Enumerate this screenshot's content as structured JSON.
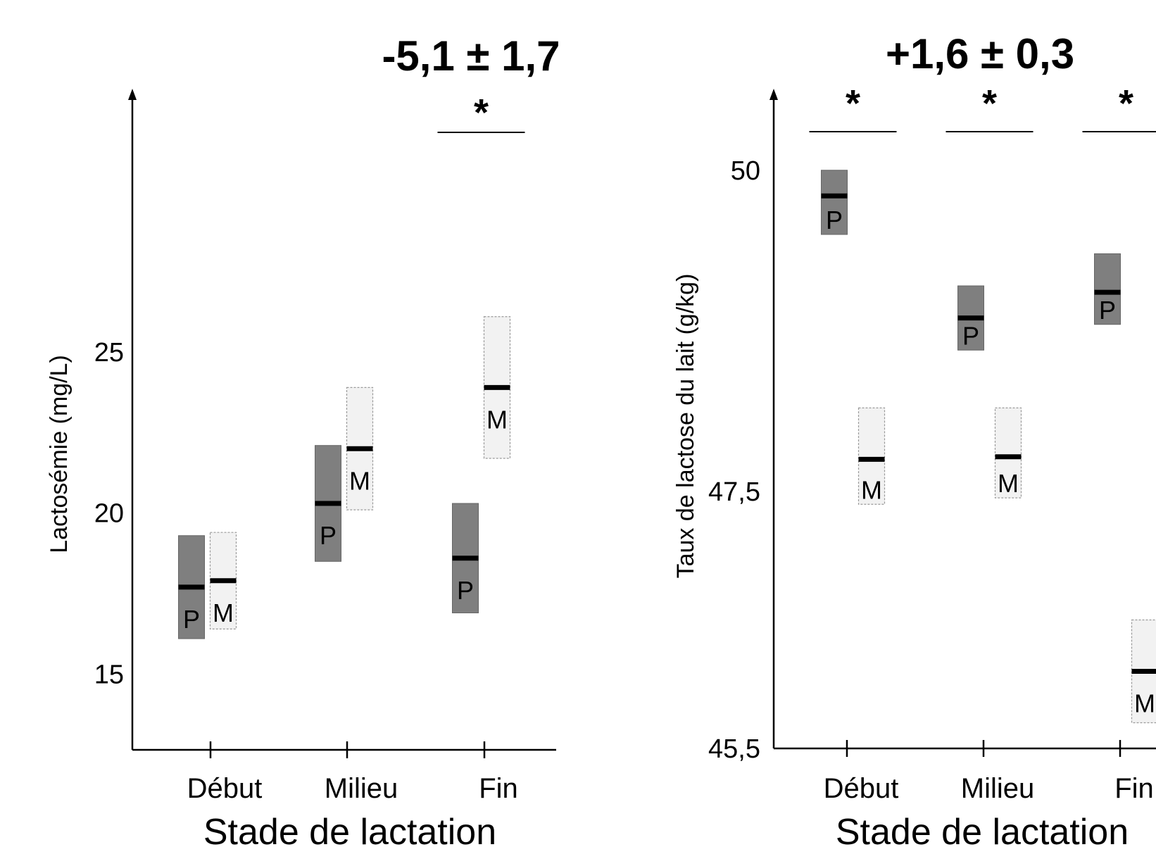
{
  "chart_data": [
    {
      "type": "bar",
      "chart_style": "floating range boxes with mean bar",
      "ylabel": "Lactosémie (mg/L)",
      "xlabel": "Stade de lactation",
      "headline": "-5,1 ± 1,7",
      "ylim": [
        13.5,
        28.5
      ],
      "yticks": [
        {
          "value": 15,
          "label": "15"
        },
        {
          "value": 20,
          "label": "20"
        },
        {
          "value": 25,
          "label": "25"
        }
      ],
      "categories": [
        "Début",
        "Milieu",
        "Fin"
      ],
      "series": [
        {
          "name": "P",
          "color": "#7f7f7f",
          "low": [
            16.1,
            18.5,
            16.9
          ],
          "mean": [
            17.7,
            20.3,
            18.6
          ],
          "high": [
            19.3,
            22.1,
            20.3
          ]
        },
        {
          "name": "M",
          "color": "#f2f2f2",
          "low": [
            16.4,
            20.1,
            21.7
          ],
          "mean": [
            17.9,
            22.0,
            23.9
          ],
          "high": [
            19.4,
            23.9,
            26.1
          ]
        }
      ],
      "significance": [
        {
          "category": "Fin",
          "label": "*"
        }
      ],
      "grid": false,
      "legend": "none"
    },
    {
      "type": "bar",
      "chart_style": "floating range boxes with mean bar",
      "ylabel": "Taux de lactose du lait (g/kg)",
      "xlabel": "Stade de lactation",
      "headline": "+1,6 ± 0,3",
      "ylim": [
        45.5,
        50.3
      ],
      "yticks": [
        {
          "value": 45.5,
          "label": "45,5"
        },
        {
          "value": 47.5,
          "label": "47,5"
        },
        {
          "value": 50,
          "label": "50"
        }
      ],
      "categories": [
        "Début",
        "Milieu",
        "Fin"
      ],
      "series": [
        {
          "name": "P",
          "color": "#7f7f7f",
          "low": [
            49.5,
            48.6,
            48.8
          ],
          "mean": [
            49.8,
            48.85,
            49.05
          ],
          "high": [
            50.0,
            49.1,
            49.35
          ]
        },
        {
          "name": "M",
          "color": "#f2f2f2",
          "low": [
            47.4,
            47.45,
            45.7
          ],
          "mean": [
            47.75,
            47.77,
            46.1
          ],
          "high": [
            48.15,
            48.15,
            46.5
          ]
        }
      ],
      "significance": [
        {
          "category": "Début",
          "label": "*"
        },
        {
          "category": "Milieu",
          "label": "*"
        },
        {
          "category": "Fin",
          "label": "*"
        }
      ],
      "grid": false,
      "legend": "none"
    }
  ]
}
